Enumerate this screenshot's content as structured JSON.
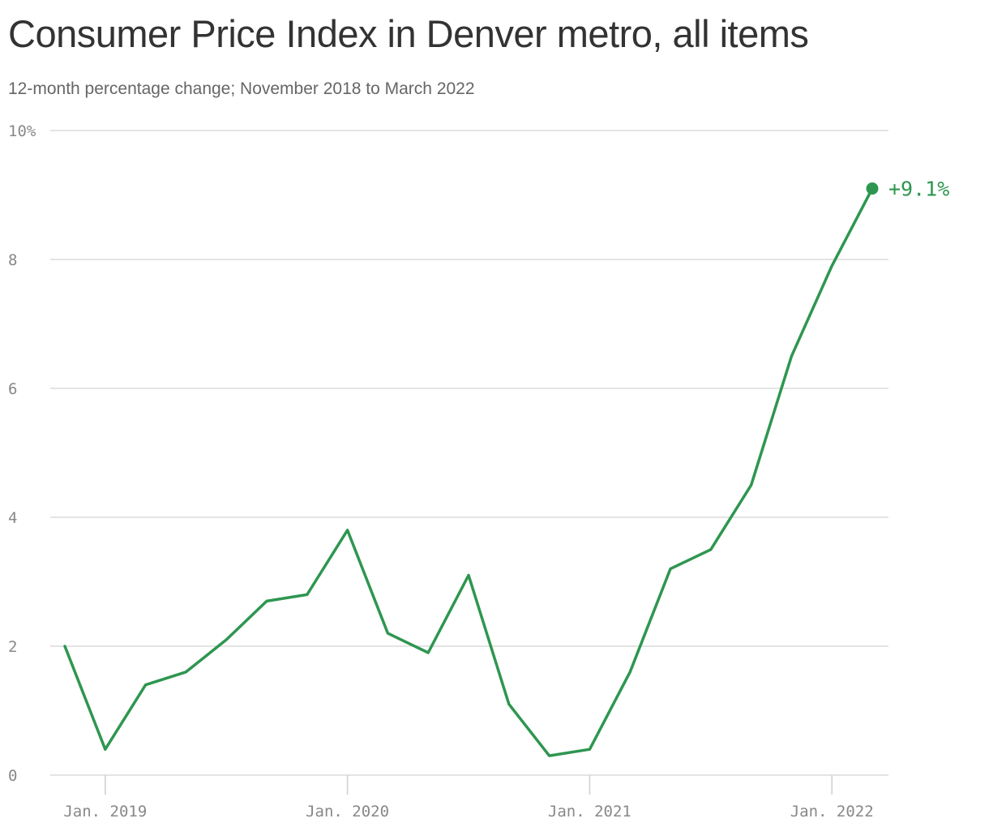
{
  "title": "Consumer Price Index in Denver metro, all items",
  "subtitle": "12-month percentage change; November 2018 to March 2022",
  "colors": {
    "line": "#2e9650",
    "grid": "#dcdcdc",
    "axis_text": "#888888"
  },
  "chart_data": {
    "type": "line",
    "x": [
      "2018-11",
      "2019-01",
      "2019-03",
      "2019-05",
      "2019-07",
      "2019-09",
      "2019-11",
      "2020-01",
      "2020-03",
      "2020-05",
      "2020-07",
      "2020-09",
      "2020-11",
      "2021-01",
      "2021-03",
      "2021-05",
      "2021-07",
      "2021-09",
      "2021-11",
      "2022-01",
      "2022-03"
    ],
    "series": [
      {
        "values": [
          2.0,
          0.4,
          1.4,
          1.6,
          2.1,
          2.7,
          2.8,
          3.8,
          2.2,
          1.9,
          3.1,
          1.1,
          0.3,
          0.4,
          1.6,
          3.2,
          3.5,
          4.5,
          6.5,
          7.9,
          9.1
        ]
      }
    ],
    "ylim": [
      0,
      10
    ],
    "y_ticks": [
      {
        "value": 10,
        "label": "10%"
      },
      {
        "value": 8,
        "label": "8"
      },
      {
        "value": 6,
        "label": "6"
      },
      {
        "value": 4,
        "label": "4"
      },
      {
        "value": 2,
        "label": "2"
      },
      {
        "value": 0,
        "label": "0"
      }
    ],
    "x_ticks": [
      {
        "value": "2019-01",
        "label": "Jan. 2019"
      },
      {
        "value": "2020-01",
        "label": "Jan. 2020"
      },
      {
        "value": "2021-01",
        "label": "Jan. 2021"
      },
      {
        "value": "2022-01",
        "label": "Jan. 2022"
      }
    ],
    "end_label": "+9.1%",
    "grid": true
  }
}
